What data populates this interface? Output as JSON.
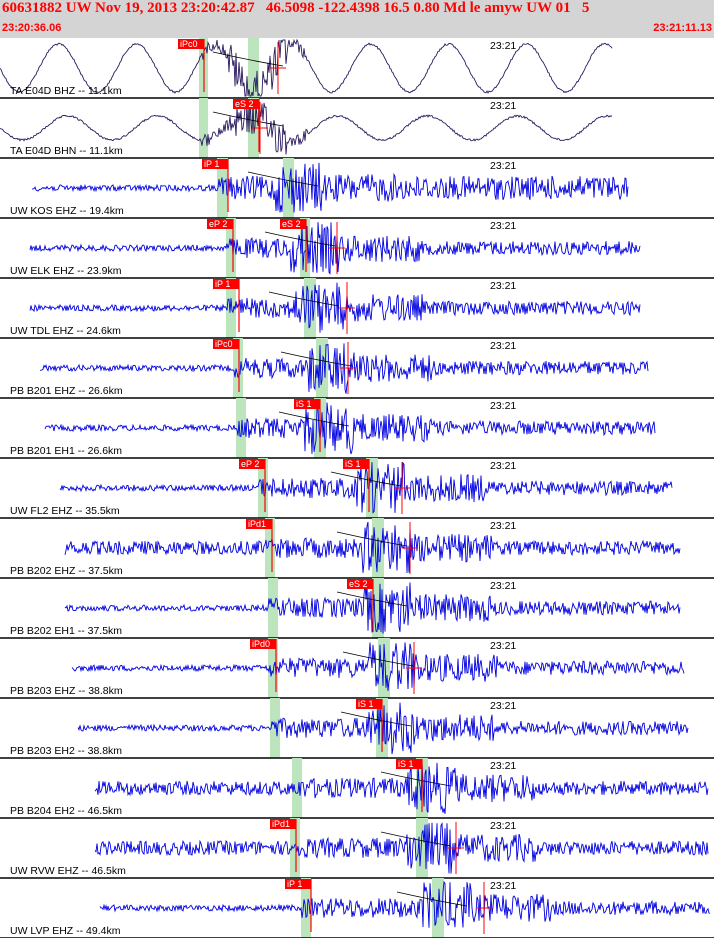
{
  "header": {
    "title": "60631882 UW Nov 19, 2013 23:20:42.87   46.5098 -122.4398 16.5 0.80 Md le amyw UW 01   5",
    "start_time": "23:20:36.06",
    "end_time": "23:21:11.13"
  },
  "colors": {
    "header_bg": "#d4d4d4",
    "header_text": "#ff0000",
    "trace_blue": "#0000e0",
    "trace_dark": "#2a1a5e",
    "pick_red": "#ff0000",
    "window_green": "#bde5bd"
  },
  "time_mark_label": "23:21",
  "traces": [
    {
      "label": "TA E04D BHZ -- 11.1km",
      "color": "dark",
      "style": "wave",
      "picks": [
        {
          "label": "iPc0"
        }
      ]
    },
    {
      "label": "TA E04D BHN -- 11.1km",
      "color": "dark",
      "style": "wave",
      "picks": [
        {
          "label": "eS 2"
        }
      ]
    },
    {
      "label": "UW KOS EHZ -- 19.4km",
      "color": "blue",
      "style": "noise",
      "picks": [
        {
          "label": "iP 1"
        }
      ]
    },
    {
      "label": "UW ELK EHZ -- 23.9km",
      "color": "blue",
      "style": "noise",
      "picks": [
        {
          "label": "eP 2"
        },
        {
          "label": "eS 2"
        }
      ]
    },
    {
      "label": "UW TDL EHZ -- 24.6km",
      "color": "blue",
      "style": "noise",
      "picks": [
        {
          "label": "iP 1"
        }
      ]
    },
    {
      "label": "PB B201 EHZ -- 26.6km",
      "color": "blue",
      "style": "noise",
      "picks": [
        {
          "label": "iPc0"
        }
      ]
    },
    {
      "label": "PB B201 EH1 -- 26.6km",
      "color": "blue",
      "style": "noise",
      "picks": [
        {
          "label": "iS 1"
        }
      ]
    },
    {
      "label": "UW FL2 EHZ -- 35.5km",
      "color": "blue",
      "style": "noise",
      "picks": [
        {
          "label": "eP 2"
        },
        {
          "label": "iS 1"
        }
      ]
    },
    {
      "label": "PB B202 EHZ -- 37.5km",
      "color": "blue",
      "style": "noise",
      "picks": [
        {
          "label": "iPd1"
        }
      ]
    },
    {
      "label": "PB B202 EH1 -- 37.5km",
      "color": "blue",
      "style": "noise",
      "picks": [
        {
          "label": "eS 2"
        }
      ]
    },
    {
      "label": "PB B203 EHZ -- 38.8km",
      "color": "blue",
      "style": "noise",
      "picks": [
        {
          "label": "iPd0"
        }
      ]
    },
    {
      "label": "PB B203 EH2 -- 38.8km",
      "color": "blue",
      "style": "noise",
      "picks": [
        {
          "label": "iS 1"
        }
      ]
    },
    {
      "label": "PB B204 EH2 -- 46.5km",
      "color": "blue",
      "style": "noise",
      "picks": [
        {
          "label": "iS 1"
        }
      ]
    },
    {
      "label": "UW RVW EHZ -- 46.5km",
      "color": "blue",
      "style": "noise",
      "picks": [
        {
          "label": "iPd1"
        }
      ]
    },
    {
      "label": "UW LVP EHZ -- 49.4km",
      "color": "blue",
      "style": "noise",
      "picks": [
        {
          "label": "iP 1"
        }
      ]
    }
  ]
}
